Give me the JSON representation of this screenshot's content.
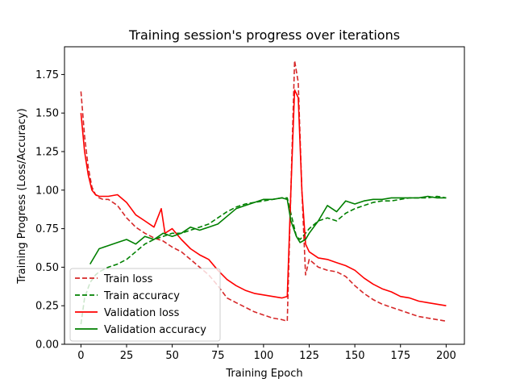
{
  "chart_data": {
    "type": "line",
    "title": "Training session's progress over iterations",
    "xlabel": "Training Epoch",
    "ylabel": "Training Progress (Loss/Accuracy)",
    "xlim": [
      -9,
      210
    ],
    "ylim": [
      0.0,
      1.93
    ],
    "xticks": [
      0,
      25,
      50,
      75,
      100,
      125,
      150,
      175,
      200
    ],
    "yticks": [
      0.0,
      0.25,
      0.5,
      0.75,
      1.0,
      1.25,
      1.5,
      1.75
    ],
    "ytick_labels": [
      "0.00",
      "0.25",
      "0.50",
      "0.75",
      "1.00",
      "1.25",
      "1.50",
      "1.75"
    ],
    "grid": false,
    "legend_position": "lower-left",
    "series": [
      {
        "name": "Train loss",
        "color": "#d62728",
        "style": "dashed",
        "x": [
          0,
          2,
          4,
          6,
          8,
          10,
          12,
          15,
          20,
          25,
          30,
          35,
          40,
          45,
          50,
          55,
          60,
          65,
          70,
          75,
          80,
          85,
          90,
          95,
          100,
          105,
          110,
          113,
          115,
          117,
          119,
          121,
          123,
          125,
          130,
          135,
          140,
          145,
          150,
          155,
          160,
          165,
          170,
          175,
          180,
          185,
          190,
          195,
          200
        ],
        "y": [
          1.64,
          1.35,
          1.15,
          1.02,
          0.97,
          0.95,
          0.94,
          0.94,
          0.9,
          0.82,
          0.76,
          0.72,
          0.69,
          0.67,
          0.63,
          0.6,
          0.55,
          0.5,
          0.45,
          0.38,
          0.3,
          0.27,
          0.24,
          0.21,
          0.19,
          0.17,
          0.16,
          0.15,
          1.0,
          1.84,
          1.7,
          1.0,
          0.45,
          0.55,
          0.5,
          0.48,
          0.47,
          0.44,
          0.38,
          0.33,
          0.29,
          0.26,
          0.24,
          0.22,
          0.2,
          0.18,
          0.17,
          0.16,
          0.15
        ]
      },
      {
        "name": "Train accuracy",
        "color": "#008000",
        "style": "dashed",
        "x": [
          0,
          2,
          5,
          8,
          10,
          15,
          20,
          25,
          30,
          35,
          40,
          45,
          50,
          55,
          60,
          65,
          70,
          75,
          80,
          85,
          90,
          95,
          100,
          105,
          110,
          113,
          115,
          118,
          120,
          123,
          125,
          130,
          135,
          140,
          145,
          150,
          155,
          160,
          165,
          170,
          175,
          180,
          185,
          190,
          195,
          200
        ],
        "y": [
          0.13,
          0.3,
          0.4,
          0.45,
          0.47,
          0.5,
          0.52,
          0.55,
          0.6,
          0.65,
          0.68,
          0.7,
          0.72,
          0.72,
          0.74,
          0.76,
          0.78,
          0.82,
          0.86,
          0.89,
          0.91,
          0.92,
          0.93,
          0.94,
          0.95,
          0.95,
          0.85,
          0.7,
          0.68,
          0.72,
          0.75,
          0.8,
          0.82,
          0.8,
          0.85,
          0.88,
          0.9,
          0.92,
          0.93,
          0.93,
          0.94,
          0.95,
          0.95,
          0.95,
          0.96,
          0.95
        ]
      },
      {
        "name": "Validation loss",
        "color": "#ff0000",
        "style": "solid",
        "x": [
          0,
          2,
          4,
          6,
          8,
          10,
          15,
          20,
          25,
          30,
          35,
          40,
          44,
          46,
          50,
          55,
          60,
          65,
          70,
          75,
          80,
          85,
          90,
          95,
          100,
          105,
          110,
          113,
          115,
          117,
          119,
          121,
          123,
          125,
          130,
          135,
          140,
          145,
          150,
          155,
          160,
          165,
          170,
          175,
          180,
          185,
          190,
          195,
          200
        ],
        "y": [
          1.5,
          1.25,
          1.1,
          1.0,
          0.97,
          0.96,
          0.96,
          0.97,
          0.92,
          0.84,
          0.8,
          0.76,
          0.88,
          0.72,
          0.75,
          0.68,
          0.62,
          0.58,
          0.55,
          0.48,
          0.42,
          0.38,
          0.35,
          0.33,
          0.32,
          0.31,
          0.3,
          0.31,
          1.0,
          1.65,
          1.6,
          1.0,
          0.65,
          0.6,
          0.56,
          0.55,
          0.53,
          0.51,
          0.48,
          0.43,
          0.39,
          0.36,
          0.34,
          0.31,
          0.3,
          0.28,
          0.27,
          0.26,
          0.25
        ]
      },
      {
        "name": "Validation accuracy",
        "color": "#007f00",
        "style": "solid",
        "x": [
          5,
          8,
          10,
          15,
          20,
          25,
          30,
          35,
          40,
          45,
          50,
          55,
          60,
          65,
          70,
          75,
          80,
          85,
          90,
          95,
          100,
          105,
          110,
          113,
          115,
          118,
          120,
          123,
          125,
          130,
          135,
          140,
          145,
          150,
          155,
          160,
          165,
          170,
          175,
          180,
          185,
          190,
          195,
          200
        ],
        "y": [
          0.52,
          0.58,
          0.62,
          0.64,
          0.66,
          0.68,
          0.65,
          0.7,
          0.68,
          0.72,
          0.7,
          0.72,
          0.76,
          0.74,
          0.76,
          0.78,
          0.83,
          0.88,
          0.9,
          0.92,
          0.94,
          0.94,
          0.95,
          0.94,
          0.8,
          0.7,
          0.66,
          0.68,
          0.72,
          0.8,
          0.9,
          0.86,
          0.93,
          0.91,
          0.93,
          0.94,
          0.94,
          0.95,
          0.95,
          0.95,
          0.95,
          0.96,
          0.95,
          0.95
        ]
      }
    ]
  }
}
